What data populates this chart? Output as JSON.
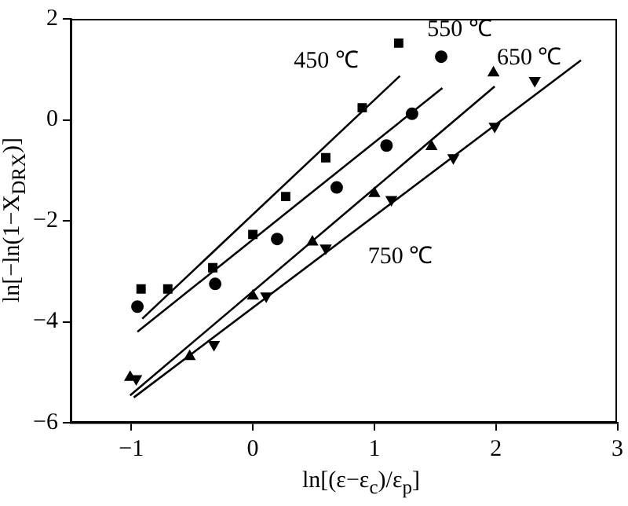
{
  "chart_data": {
    "type": "scatter",
    "xlabel": "ln[(ε−ε$_{c}$)/ε$_{p}$]",
    "ylabel": "ln[−ln(1−X$_{DRX}$)]",
    "xlim": [
      -1.5,
      3
    ],
    "ylim": [
      -6,
      2
    ],
    "xticks": [
      -1,
      0,
      1,
      2,
      3
    ],
    "yticks": [
      -6,
      -4,
      -2,
      0,
      2
    ],
    "grid": false,
    "legend": false,
    "series": [
      {
        "type": "scatter",
        "marker": "square",
        "color": "#000000",
        "x": [
          -0.92,
          -0.7,
          -0.33,
          0,
          0.27,
          0.6,
          0.9,
          1.2
        ],
        "values": [
          -3.35,
          -3.35,
          -2.93,
          -2.27,
          -1.52,
          -0.75,
          0.24,
          1.52
        ]
      },
      {
        "type": "scatter",
        "marker": "circle",
        "color": "#000000",
        "x": [
          -0.95,
          -0.31,
          0.2,
          0.69,
          1.1,
          1.31,
          1.55
        ],
        "values": [
          -3.7,
          -3.25,
          -2.36,
          -1.34,
          -0.51,
          0.12,
          1.25
        ]
      },
      {
        "type": "scatter",
        "marker": "triangle",
        "color": "#000000",
        "x": [
          -1.01,
          -0.52,
          0,
          0.49,
          1.0,
          1.47,
          1.98
        ],
        "values": [
          -5.1,
          -4.69,
          -3.49,
          -2.42,
          -1.46,
          -0.53,
          0.93
        ]
      },
      {
        "type": "scatter",
        "marker": "triangle-down",
        "color": "#000000",
        "x": [
          -0.96,
          -0.32,
          0.11,
          0.6,
          1.14,
          1.65,
          1.99,
          2.32
        ],
        "values": [
          -5.13,
          -4.45,
          -3.49,
          -2.54,
          -1.58,
          -0.75,
          -0.13,
          0.78
        ]
      },
      {
        "type": "line",
        "name": "450 ℃",
        "marker": "none",
        "line_style": "solid",
        "color": "#000000",
        "x": [
          -0.91,
          1.21
        ],
        "values": [
          -3.94,
          0.87
        ]
      },
      {
        "type": "line",
        "name": "550 ℃",
        "marker": "none",
        "line_style": "solid",
        "color": "#000000",
        "x": [
          -0.95,
          1.56
        ],
        "values": [
          -4.2,
          0.63
        ]
      },
      {
        "type": "line",
        "name": "650 ℃",
        "marker": "none",
        "line_style": "solid",
        "color": "#000000",
        "x": [
          -1.01,
          1.99
        ],
        "values": [
          -5.46,
          0.66
        ]
      },
      {
        "type": "line",
        "name": "750 ℃",
        "marker": "none",
        "line_style": "solid",
        "color": "#000000",
        "x": [
          -0.98,
          2.7
        ],
        "values": [
          -5.5,
          1.18
        ]
      }
    ]
  }
}
